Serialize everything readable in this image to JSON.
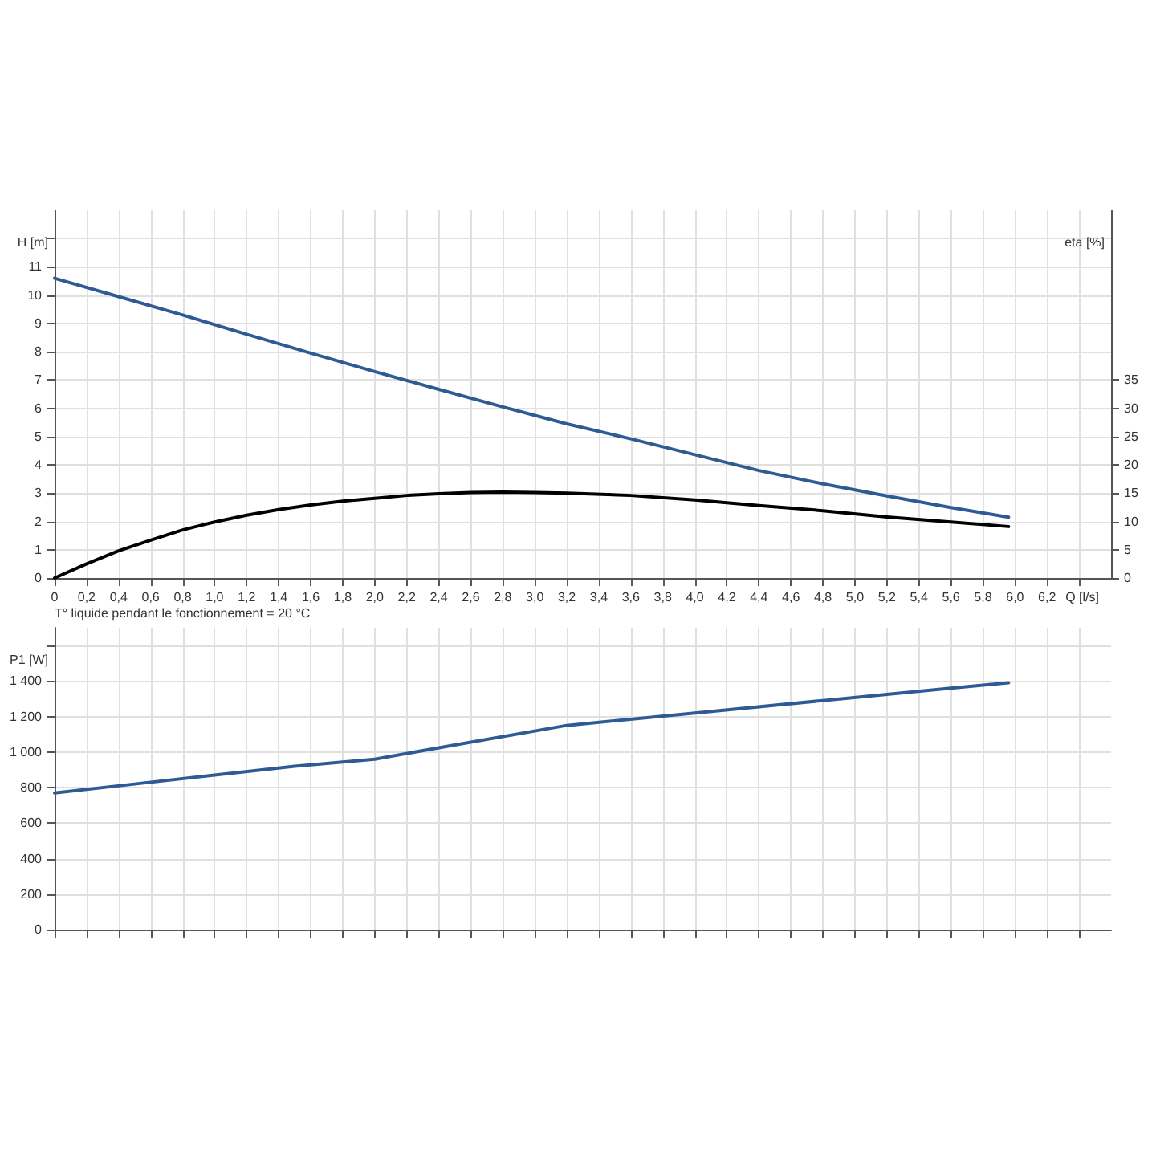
{
  "chart_data": [
    {
      "type": "line",
      "ylabel": "H [m]",
      "y2label": "eta [%]",
      "xlabel": "Q [l/s]",
      "grid": true,
      "marker": "none",
      "line_style": "solid",
      "xlim": [
        0,
        6.6
      ],
      "xticks": [
        0,
        {
          "value": 0.2,
          "label": "0,2"
        },
        {
          "value": 0.4,
          "label": "0,4"
        },
        {
          "value": 0.6,
          "label": "0,6"
        },
        {
          "value": 0.8,
          "label": "0,8"
        },
        {
          "value": 1.0,
          "label": "1,0"
        },
        {
          "value": 1.2,
          "label": "1,2"
        },
        {
          "value": 1.4,
          "label": "1,4"
        },
        {
          "value": 1.6,
          "label": "1,6"
        },
        {
          "value": 1.8,
          "label": "1,8"
        },
        {
          "value": 2.0,
          "label": "2,0"
        },
        {
          "value": 2.2,
          "label": "2,2"
        },
        {
          "value": 2.4,
          "label": "2,4"
        },
        {
          "value": 2.6,
          "label": "2,6"
        },
        {
          "value": 2.8,
          "label": "2,8"
        },
        {
          "value": 3.0,
          "label": "3,0"
        },
        {
          "value": 3.2,
          "label": "3,2"
        },
        {
          "value": 3.4,
          "label": "3,4"
        },
        {
          "value": 3.6,
          "label": "3,6"
        },
        {
          "value": 3.8,
          "label": "3,8"
        },
        {
          "value": 4.0,
          "label": "4,0"
        },
        {
          "value": 4.2,
          "label": "4,2"
        },
        {
          "value": 4.4,
          "label": "4,4"
        },
        {
          "value": 4.6,
          "label": "4,6"
        },
        {
          "value": 4.8,
          "label": "4,8"
        },
        {
          "value": 5.0,
          "label": "5,0"
        },
        {
          "value": 5.2,
          "label": "5,2"
        },
        {
          "value": 5.4,
          "label": "5,4"
        },
        {
          "value": 5.6,
          "label": "5,6"
        },
        {
          "value": 5.8,
          "label": "5,8"
        },
        {
          "value": 6.0,
          "label": "6,0"
        },
        {
          "value": 6.2,
          "label": "6,2"
        },
        {
          "value": 6.4,
          "label": null
        }
      ],
      "ylim": [
        0,
        13
      ],
      "yticks": [
        0,
        1,
        2,
        3,
        4,
        5,
        6,
        7,
        8,
        9,
        10,
        11,
        {
          "value": 12,
          "label": null
        }
      ],
      "y2lim": [
        0,
        65
      ],
      "y2ticks": [
        0,
        5,
        10,
        15,
        20,
        25,
        30,
        35
      ],
      "series": [
        {
          "color": "#2f5b94",
          "axis": "y",
          "x": [
            0,
            0.4,
            0.8,
            1.2,
            1.6,
            2.0,
            2.4,
            2.8,
            3.2,
            3.6,
            4.0,
            4.4,
            4.8,
            5.2,
            5.6,
            5.96
          ],
          "values": [
            10.6,
            9.95,
            9.3,
            8.62,
            7.95,
            7.3,
            6.67,
            6.05,
            5.45,
            4.92,
            4.36,
            3.8,
            3.33,
            2.9,
            2.49,
            2.15
          ]
        },
        {
          "color": "#000000",
          "axis": "y2",
          "x": [
            0,
            0.2,
            0.4,
            0.6,
            0.8,
            1.0,
            1.2,
            1.4,
            1.6,
            1.8,
            2.0,
            2.2,
            2.4,
            2.6,
            2.8,
            3.0,
            3.2,
            3.6,
            4.0,
            4.4,
            4.8,
            5.2,
            5.6,
            5.96
          ],
          "values": [
            0,
            2.5,
            4.8,
            6.7,
            8.5,
            9.9,
            11.1,
            12.1,
            12.9,
            13.6,
            14.1,
            14.6,
            14.9,
            15.1,
            15.2,
            15.1,
            15.0,
            14.6,
            13.8,
            12.8,
            11.9,
            10.8,
            9.9,
            9.1
          ]
        }
      ]
    },
    {
      "type": "line",
      "ylabel": "P1 [W]",
      "grid": true,
      "marker": "none",
      "line_style": "solid",
      "tick_labels": "y",
      "annotations": [
        "T° liquide pendant le fonctionnement = 20 °C"
      ],
      "xlim": [
        0,
        6.6
      ],
      "xticks": [
        0,
        0.2,
        0.4,
        0.6,
        0.8,
        1.0,
        1.2,
        1.4,
        1.6,
        1.8,
        2.0,
        2.2,
        2.4,
        2.6,
        2.8,
        3.0,
        3.2,
        3.4,
        3.6,
        3.8,
        4.0,
        4.2,
        4.4,
        4.6,
        4.8,
        5.0,
        5.2,
        5.4,
        5.6,
        5.8,
        6.0,
        6.2,
        6.4
      ],
      "ylim": [
        0,
        1700
      ],
      "yticks": [
        0,
        200,
        400,
        600,
        800,
        {
          "value": 1000,
          "label": "1 000"
        },
        {
          "value": 1200,
          "label": "1 200"
        },
        {
          "value": 1400,
          "label": "1 400"
        },
        {
          "value": 1600,
          "label": null
        }
      ],
      "series": [
        {
          "color": "#2f5b94",
          "axis": "y",
          "x": [
            0,
            0.5,
            1.0,
            1.5,
            2.0,
            2.5,
            3.2,
            4.0,
            4.8,
            5.6,
            5.96
          ],
          "values": [
            770,
            820,
            870,
            920,
            960,
            1040,
            1150,
            1220,
            1290,
            1360,
            1390
          ]
        }
      ]
    }
  ]
}
